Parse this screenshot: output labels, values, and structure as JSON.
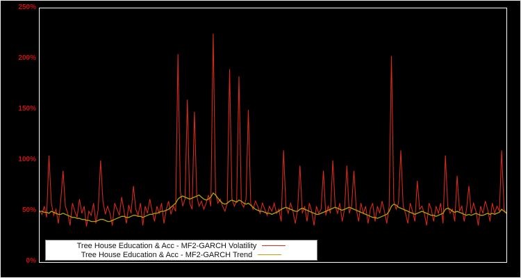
{
  "chart": {
    "background_color": "#000000",
    "plot_border_color": "#ffffff",
    "tick_label_color": "#cc1111",
    "legend": {
      "items": [
        {
          "label": "Tree House Education & Acc - MF2-GARCH Volatility",
          "color": "#d62a1a"
        },
        {
          "label": "Tree House Education & Acc - MF2-GARCH Trend",
          "color": "#b8a400"
        }
      ]
    }
  },
  "chart_data": {
    "type": "line",
    "title": "",
    "xlabel": "",
    "ylabel": "",
    "ylim": [
      0,
      250
    ],
    "grid": false,
    "legend_position": "bottom-left",
    "y_tick_labels": [
      "0%",
      "50%",
      "100%",
      "150%",
      "200%",
      "250%"
    ],
    "y_unit": "percent",
    "series": [
      {
        "name": "Tree House Education & Acc - MF2-GARCH Volatility",
        "color": "#d62a1a",
        "values": [
          50,
          47,
          55,
          44,
          105,
          58,
          46,
          52,
          38,
          60,
          90,
          55,
          48,
          36,
          58,
          50,
          44,
          62,
          48,
          55,
          35,
          50,
          46,
          58,
          38,
          52,
          100,
          60,
          47,
          55,
          48,
          36,
          58,
          52,
          46,
          64,
          50,
          38,
          56,
          48,
          75,
          52,
          46,
          58,
          36,
          55,
          48,
          62,
          50,
          40,
          55,
          48,
          58,
          38,
          52,
          60,
          47,
          55,
          50,
          205,
          70,
          55,
          62,
          160,
          58,
          52,
          148,
          65,
          55,
          60,
          52,
          58,
          66,
          55,
          225,
          68,
          58,
          62,
          55,
          50,
          58,
          190,
          62,
          55,
          60,
          183,
          58,
          54,
          62,
          150,
          58,
          52,
          60,
          55,
          48,
          58,
          52,
          46,
          55,
          50,
          58,
          48,
          52,
          40,
          110,
          55,
          48,
          58,
          50,
          38,
          52,
          95,
          48,
          55,
          40,
          58,
          50,
          36,
          55,
          48,
          52,
          90,
          46,
          55,
          48,
          100,
          55,
          48,
          58,
          40,
          52,
          95,
          48,
          55,
          90,
          52,
          40,
          58,
          48,
          55,
          38,
          52,
          58,
          40,
          55,
          48,
          60,
          50,
          38,
          55,
          203,
          60,
          52,
          58,
          110,
          55,
          48,
          38,
          58,
          50,
          40,
          80,
          52,
          55,
          48,
          36,
          58,
          52,
          40,
          55,
          48,
          58,
          38,
          105,
          55,
          48,
          52,
          40,
          85,
          50,
          55,
          40,
          52,
          75,
          48,
          58,
          50,
          36,
          55,
          48,
          60,
          52,
          40,
          58,
          48,
          55,
          50,
          110,
          52,
          48
        ]
      },
      {
        "name": "Tree House Education & Acc - MF2-GARCH Trend",
        "color": "#b8a400",
        "values": [
          50,
          50,
          49,
          49,
          48,
          50,
          49,
          48,
          47,
          47,
          48,
          47,
          46,
          45,
          44,
          44,
          43,
          43,
          42,
          42,
          41,
          41,
          40,
          40,
          40,
          41,
          42,
          42,
          41,
          40,
          40,
          41,
          42,
          43,
          44,
          45,
          45,
          44,
          44,
          45,
          46,
          46,
          45,
          45,
          44,
          45,
          46,
          47,
          47,
          48,
          48,
          49,
          50,
          50,
          51,
          52,
          54,
          56,
          58,
          62,
          64,
          65,
          64,
          63,
          62,
          63,
          64,
          65,
          66,
          64,
          62,
          61,
          62,
          64,
          68,
          66,
          63,
          60,
          58,
          57,
          58,
          60,
          61,
          60,
          59,
          61,
          60,
          58,
          57,
          58,
          56,
          54,
          52,
          51,
          50,
          50,
          49,
          48,
          48,
          47,
          48,
          49,
          50,
          52,
          53,
          54,
          53,
          52,
          51,
          50,
          50,
          52,
          53,
          52,
          51,
          50,
          49,
          48,
          47,
          47,
          48,
          49,
          50,
          51,
          52,
          53,
          54,
          53,
          52,
          51,
          52,
          53,
          54,
          53,
          52,
          51,
          50,
          49,
          48,
          47,
          46,
          45,
          44,
          44,
          43,
          44,
          45,
          46,
          47,
          50,
          55,
          57,
          56,
          54,
          53,
          52,
          51,
          50,
          49,
          48,
          47,
          48,
          49,
          50,
          49,
          48,
          47,
          46,
          46,
          45,
          46,
          47,
          48,
          52,
          53,
          52,
          50,
          49,
          50,
          49,
          48,
          47,
          46,
          47,
          46,
          47,
          48,
          47,
          46,
          46,
          47,
          48,
          47,
          48,
          47,
          48,
          49,
          52,
          50,
          48
        ]
      }
    ]
  }
}
